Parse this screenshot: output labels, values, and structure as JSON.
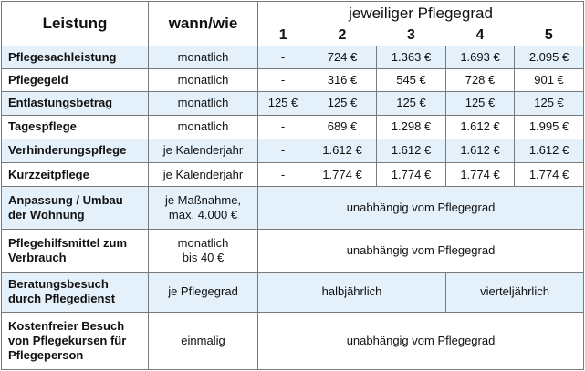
{
  "header": {
    "col_service": "Leistung",
    "col_when": "wann/wie",
    "col_grade": "jeweiliger Pflegegrad",
    "grades": [
      "1",
      "2",
      "3",
      "4",
      "5"
    ]
  },
  "rows": [
    {
      "label": "Pflegesachleistung",
      "when": "monatlich",
      "values": [
        "-",
        "724 €",
        "1.363 €",
        "1.693 €",
        "2.095 €"
      ]
    },
    {
      "label": "Pflegegeld",
      "when": "monatlich",
      "values": [
        "-",
        "316 €",
        "545 €",
        "728 €",
        "901 €"
      ]
    },
    {
      "label": "Entlastungsbetrag",
      "when": "monatlich",
      "values": [
        "125 €",
        "125 €",
        "125 €",
        "125 €",
        "125 €"
      ]
    },
    {
      "label": "Tagespflege",
      "when": "monatlich",
      "values": [
        "-",
        "689 €",
        "1.298 €",
        "1.612 €",
        "1.995 €"
      ]
    },
    {
      "label": "Verhinderungspflege",
      "when": "je Kalenderjahr",
      "values": [
        "-",
        "1.612 €",
        "1.612 €",
        "1.612 €",
        "1.612 €"
      ]
    },
    {
      "label": "Kurzzeitpflege",
      "when": "je Kalenderjahr",
      "values": [
        "-",
        "1.774 €",
        "1.774 €",
        "1.774 €",
        "1.774 €"
      ]
    }
  ],
  "adaptation": {
    "label_line1": "Anpassung / Umbau",
    "label_line2": "der Wohnung",
    "when_line1": "je Maßnahme,",
    "when_line2": "max. 4.000 €",
    "value": "unabhängig vom Pflegegrad"
  },
  "aids": {
    "label_line1": "Pflegehilfsmittel zum",
    "label_line2": "Verbrauch",
    "when_line1": "monatlich",
    "when_line2": "bis 40 €",
    "value": "unabhängig vom Pflegegrad"
  },
  "consultation": {
    "label_line1": "Beratungsbesuch",
    "label_line2": "durch Pflegedienst",
    "when": "je Pflegegrad",
    "value_half": "halbjährlich",
    "value_quarter": "vierteljährlich"
  },
  "courses": {
    "label_line1": "Kostenfreier Besuch",
    "label_line2": "von Pflegekursen für",
    "label_line3": "Pflegeperson",
    "when": "einmalig",
    "value": "unabhängig vom Pflegegrad"
  },
  "colors": {
    "row_shade": "#e4f1fb",
    "border": "#7a7a7a"
  }
}
